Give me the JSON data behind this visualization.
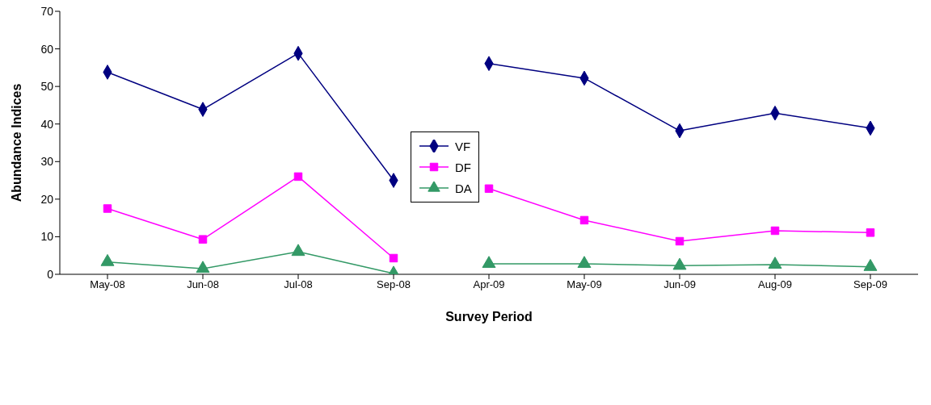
{
  "chart_data": {
    "type": "line",
    "xlabel": "Survey Period",
    "ylabel": "Abundance Indices",
    "categories": [
      "May-08",
      "Jun-08",
      "Jul-08",
      "Sep-08",
      "Apr-09",
      "May-09",
      "Jun-09",
      "Aug-09",
      "Sep-09"
    ],
    "series": [
      {
        "name": "VF",
        "color": "#000080",
        "marker": "diamond",
        "values": [
          53.8,
          43.9,
          58.8,
          25.0,
          56.1,
          52.2,
          38.2,
          42.9,
          38.9
        ]
      },
      {
        "name": "DF",
        "color": "#ff00ff",
        "marker": "square",
        "values": [
          17.5,
          9.3,
          26.0,
          4.3,
          22.8,
          14.4,
          8.8,
          11.6,
          11.1
        ]
      },
      {
        "name": "DA",
        "color": "#339966",
        "marker": "triangle",
        "values": [
          3.3,
          1.5,
          6.0,
          0.2,
          2.8,
          2.8,
          2.3,
          2.6,
          2.0
        ]
      }
    ],
    "ylim": [
      0,
      70
    ],
    "yticks": [
      0,
      10,
      20,
      30,
      40,
      50,
      60,
      70
    ],
    "grid": false,
    "legend": "center",
    "line_style": "solid"
  }
}
